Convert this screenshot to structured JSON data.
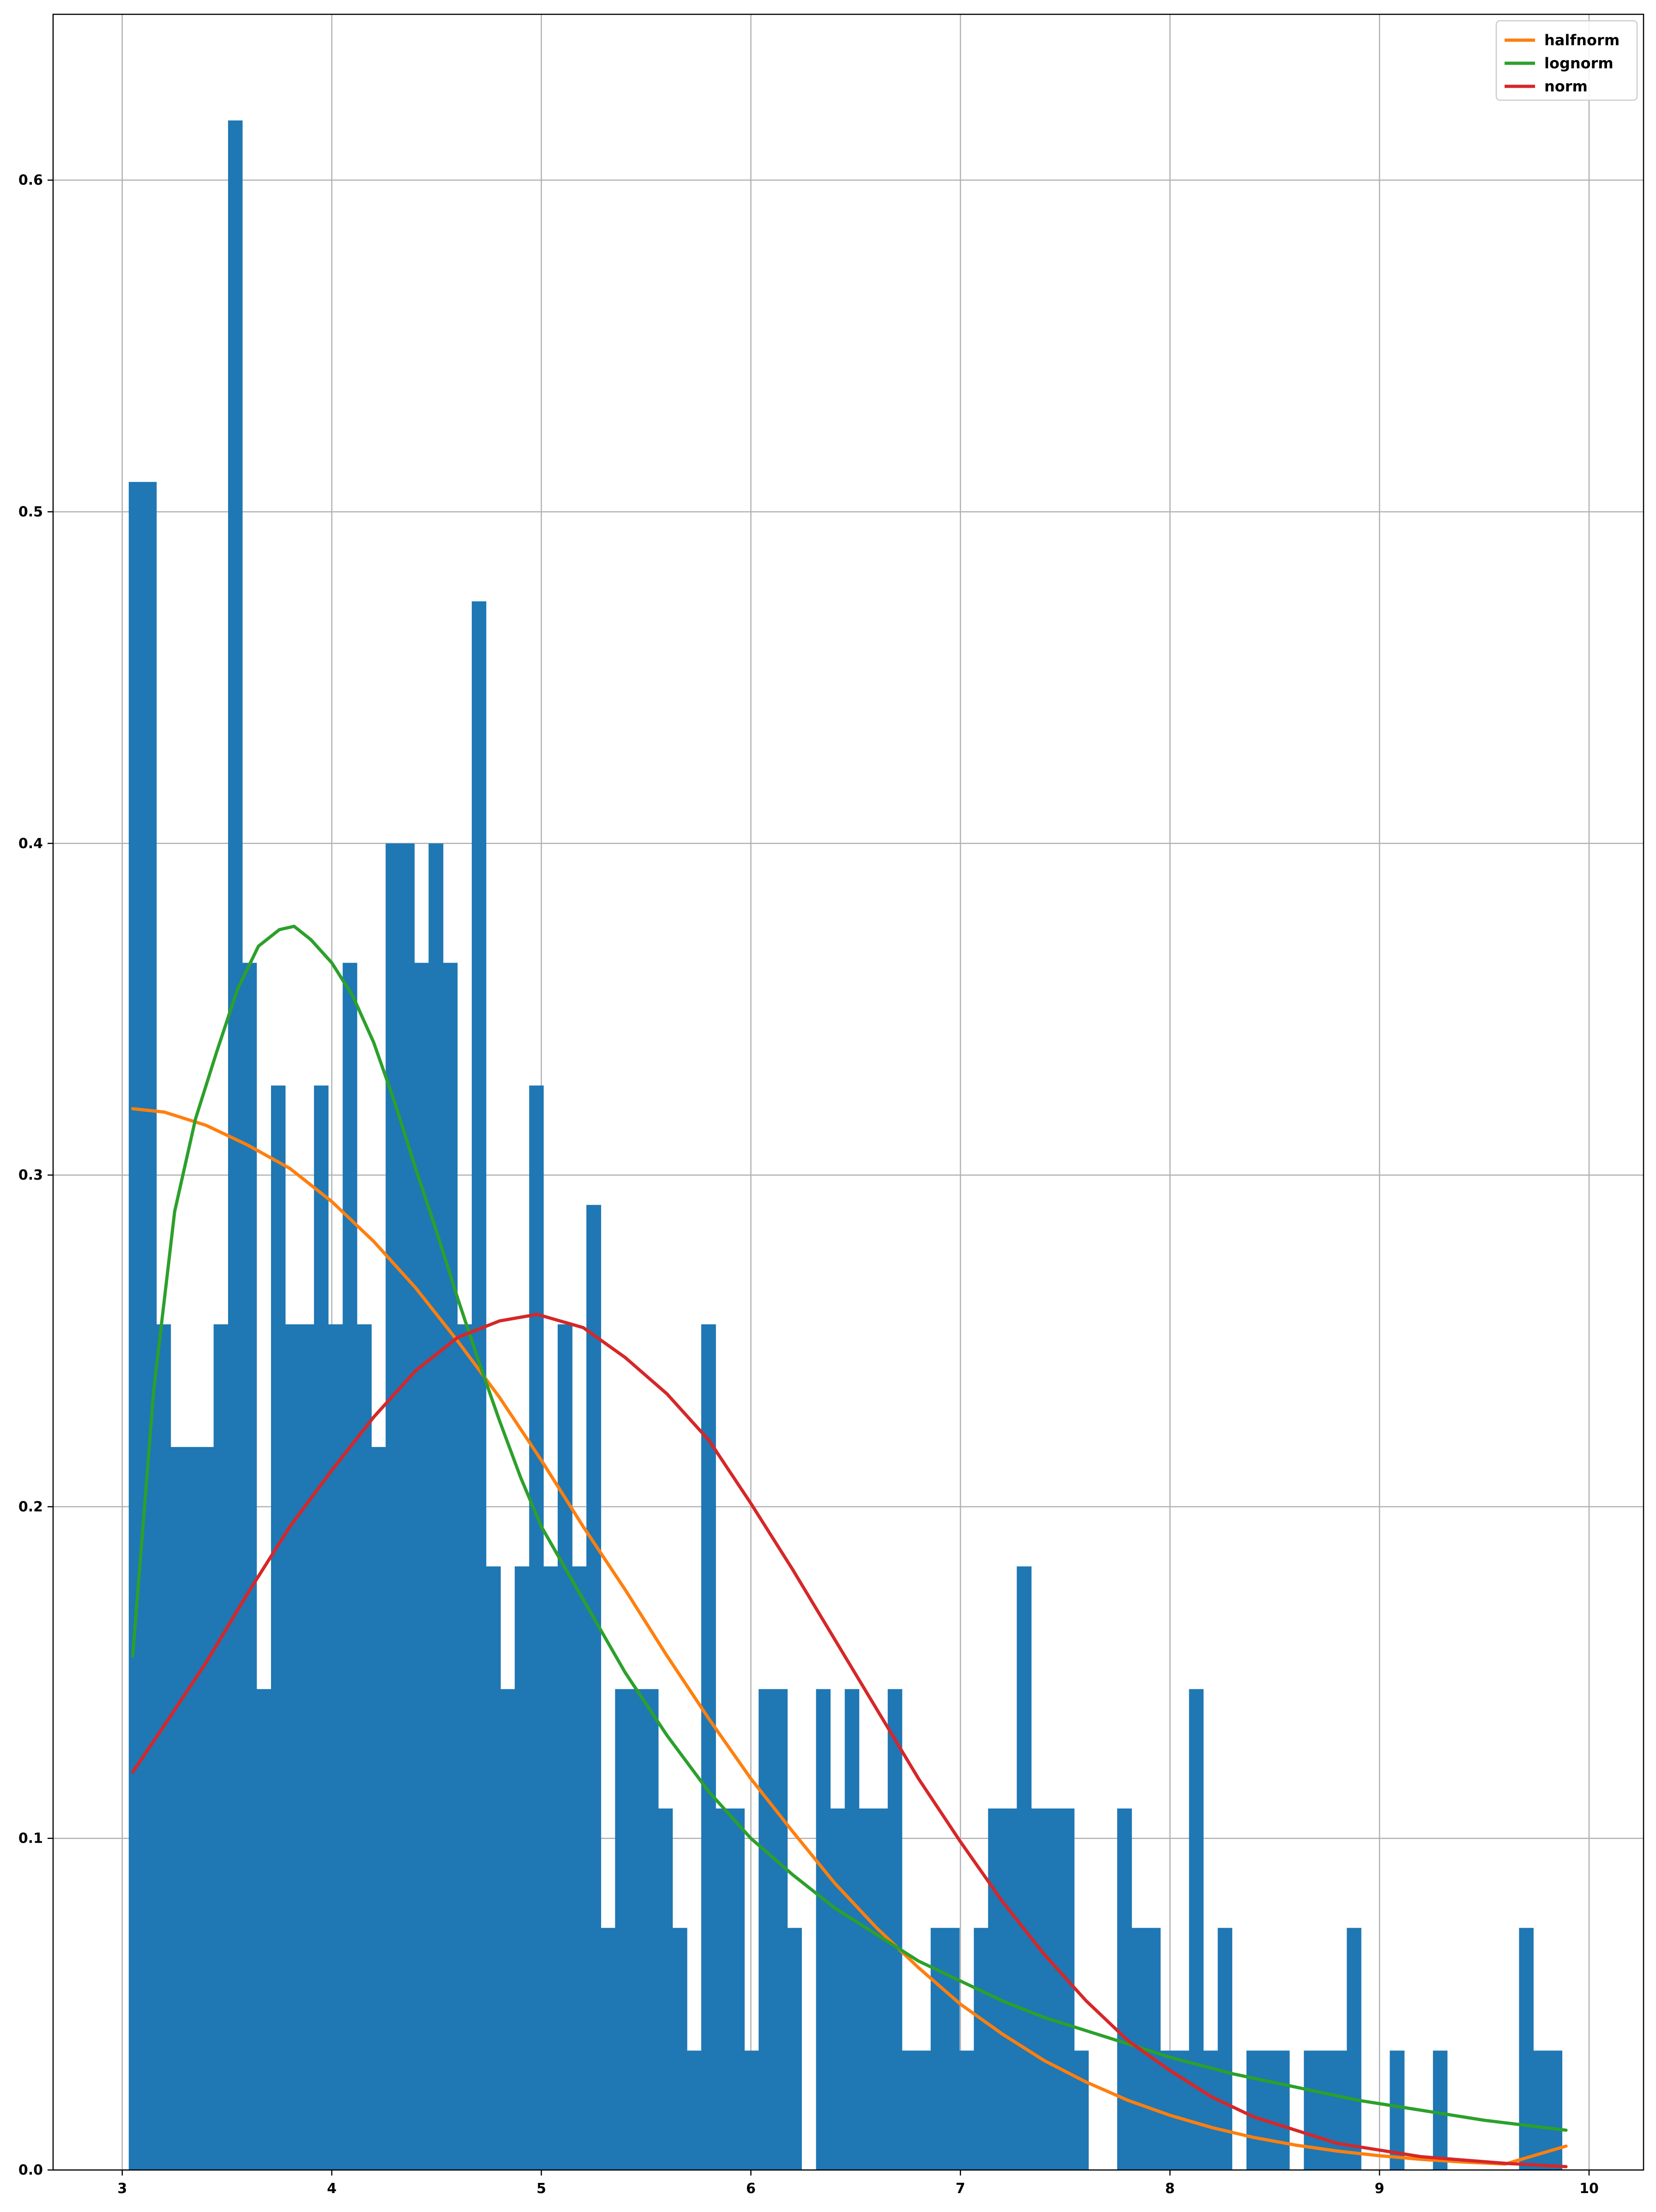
{
  "chart_data": {
    "type": "bar",
    "histogram": {
      "color": "#1f77b4",
      "bins": [
        [
          3.031,
          3.163,
          0.509
        ],
        [
          3.163,
          3.231,
          0.255
        ],
        [
          3.231,
          3.436,
          0.218
        ],
        [
          3.436,
          3.505,
          0.255
        ],
        [
          3.505,
          3.573,
          0.618
        ],
        [
          3.573,
          3.641,
          0.364
        ],
        [
          3.641,
          3.71,
          0.145
        ],
        [
          3.71,
          3.778,
          0.327
        ],
        [
          3.778,
          3.915,
          0.255
        ],
        [
          3.915,
          3.983,
          0.327
        ],
        [
          3.983,
          4.052,
          0.255
        ],
        [
          4.052,
          4.12,
          0.364
        ],
        [
          4.12,
          4.189,
          0.255
        ],
        [
          4.189,
          4.257,
          0.218
        ],
        [
          4.257,
          4.394,
          0.4
        ],
        [
          4.394,
          4.462,
          0.364
        ],
        [
          4.462,
          4.531,
          0.4
        ],
        [
          4.531,
          4.599,
          0.364
        ],
        [
          4.599,
          4.668,
          0.255
        ],
        [
          4.668,
          4.736,
          0.473
        ],
        [
          4.736,
          4.805,
          0.182
        ],
        [
          4.805,
          4.873,
          0.145
        ],
        [
          4.873,
          4.942,
          0.182
        ],
        [
          4.942,
          5.01,
          0.327
        ],
        [
          5.01,
          5.078,
          0.182
        ],
        [
          5.078,
          5.147,
          0.255
        ],
        [
          5.147,
          5.215,
          0.182
        ],
        [
          5.215,
          5.284,
          0.291
        ],
        [
          5.284,
          5.352,
          0.073
        ],
        [
          5.352,
          5.558,
          0.145
        ],
        [
          5.558,
          5.626,
          0.109
        ],
        [
          5.626,
          5.695,
          0.073
        ],
        [
          5.695,
          5.763,
          0.036
        ],
        [
          5.763,
          5.832,
          0.255
        ],
        [
          5.832,
          5.969,
          0.109
        ],
        [
          5.969,
          6.037,
          0.036
        ],
        [
          6.037,
          6.174,
          0.145
        ],
        [
          6.174,
          6.242,
          0.073
        ],
        [
          6.311,
          6.379,
          0.145
        ],
        [
          6.379,
          6.448,
          0.109
        ],
        [
          6.448,
          6.516,
          0.145
        ],
        [
          6.516,
          6.653,
          0.109
        ],
        [
          6.653,
          6.721,
          0.145
        ],
        [
          6.721,
          6.858,
          0.036
        ],
        [
          6.858,
          6.995,
          0.073
        ],
        [
          6.995,
          7.064,
          0.036
        ],
        [
          7.064,
          7.132,
          0.073
        ],
        [
          7.132,
          7.269,
          0.109
        ],
        [
          7.269,
          7.338,
          0.182
        ],
        [
          7.338,
          7.543,
          0.109
        ],
        [
          7.543,
          7.611,
          0.036
        ],
        [
          7.748,
          7.817,
          0.109
        ],
        [
          7.817,
          7.954,
          0.073
        ],
        [
          7.954,
          8.091,
          0.036
        ],
        [
          8.091,
          8.159,
          0.145
        ],
        [
          8.159,
          8.228,
          0.036
        ],
        [
          8.228,
          8.296,
          0.073
        ],
        [
          8.365,
          8.57,
          0.036
        ],
        [
          8.639,
          8.844,
          0.036
        ],
        [
          8.844,
          8.912,
          0.073
        ],
        [
          9.049,
          9.118,
          0.036
        ],
        [
          9.255,
          9.323,
          0.036
        ],
        [
          9.666,
          9.734,
          0.073
        ],
        [
          9.734,
          9.871,
          0.036
        ]
      ]
    },
    "series": [
      {
        "name": "halfnorm",
        "color": "#ff7f0e",
        "x": [
          3.05,
          3.2,
          3.4,
          3.6,
          3.8,
          4.0,
          4.2,
          4.4,
          4.6,
          4.8,
          5.0,
          5.2,
          5.4,
          5.6,
          5.8,
          6.0,
          6.2,
          6.4,
          6.6,
          6.8,
          7.0,
          7.2,
          7.4,
          7.6,
          7.8,
          8.0,
          8.2,
          8.4,
          8.6,
          8.8,
          9.0,
          9.2,
          9.4,
          9.6,
          9.89
        ],
        "y": [
          0.32,
          0.319,
          0.315,
          0.309,
          0.302,
          0.292,
          0.28,
          0.266,
          0.25,
          0.233,
          0.214,
          0.194,
          0.175,
          0.155,
          0.136,
          0.118,
          0.102,
          0.0865,
          0.073,
          0.061,
          0.05,
          0.041,
          0.033,
          0.0265,
          0.021,
          0.0165,
          0.0128,
          0.0098,
          0.0075,
          0.0057,
          0.0043,
          0.0032,
          0.0024,
          0.0018,
          0.0072
        ]
      },
      {
        "name": "lognorm",
        "color": "#2ca02c",
        "x": [
          3.05,
          3.15,
          3.25,
          3.35,
          3.45,
          3.55,
          3.65,
          3.75,
          3.82,
          3.9,
          4.0,
          4.1,
          4.2,
          4.3,
          4.4,
          4.5,
          4.6,
          4.7,
          4.8,
          4.9,
          5.0,
          5.2,
          5.4,
          5.6,
          5.8,
          6.0,
          6.2,
          6.4,
          6.6,
          6.8,
          7.0,
          7.2,
          7.4,
          7.6,
          7.8,
          8.0,
          8.3,
          8.6,
          8.9,
          9.2,
          9.5,
          9.89
        ],
        "y": [
          0.155,
          0.235,
          0.289,
          0.317,
          0.337,
          0.356,
          0.369,
          0.374,
          0.375,
          0.371,
          0.364,
          0.354,
          0.34,
          0.322,
          0.302,
          0.283,
          0.263,
          0.244,
          0.226,
          0.209,
          0.194,
          0.172,
          0.15,
          0.131,
          0.114,
          0.1,
          0.089,
          0.079,
          0.071,
          0.063,
          0.057,
          0.051,
          0.046,
          0.042,
          0.038,
          0.034,
          0.029,
          0.025,
          0.021,
          0.018,
          0.015,
          0.012
        ]
      },
      {
        "name": "norm",
        "color": "#d62728",
        "x": [
          3.05,
          3.2,
          3.4,
          3.6,
          3.8,
          4.0,
          4.2,
          4.4,
          4.6,
          4.8,
          4.98,
          5.2,
          5.4,
          5.6,
          5.8,
          6.0,
          6.2,
          6.4,
          6.6,
          6.8,
          7.0,
          7.2,
          7.4,
          7.6,
          7.8,
          8.0,
          8.2,
          8.4,
          8.6,
          8.8,
          9.0,
          9.2,
          9.4,
          9.6,
          9.89
        ],
        "y": [
          0.12,
          0.134,
          0.153,
          0.174,
          0.194,
          0.211,
          0.227,
          0.241,
          0.251,
          0.256,
          0.258,
          0.254,
          0.245,
          0.234,
          0.22,
          0.201,
          0.181,
          0.16,
          0.139,
          0.118,
          0.099,
          0.081,
          0.065,
          0.051,
          0.039,
          0.03,
          0.022,
          0.016,
          0.012,
          0.008,
          0.006,
          0.004,
          0.003,
          0.002,
          0.001
        ]
      }
    ],
    "title": "",
    "xlabel": "",
    "ylabel": "",
    "xlim": [
      2.67,
      10.26
    ],
    "ylim": [
      0,
      0.65
    ],
    "xticks": [
      3,
      4,
      5,
      6,
      7,
      8,
      9,
      10
    ],
    "yticks": [
      0.0,
      0.1,
      0.2,
      0.3,
      0.4,
      0.5,
      0.6
    ],
    "ytick_labels": [
      "0.0",
      "0.1",
      "0.2",
      "0.3",
      "0.4",
      "0.5",
      "0.6"
    ],
    "grid": true,
    "legend_placement": "top-right"
  }
}
